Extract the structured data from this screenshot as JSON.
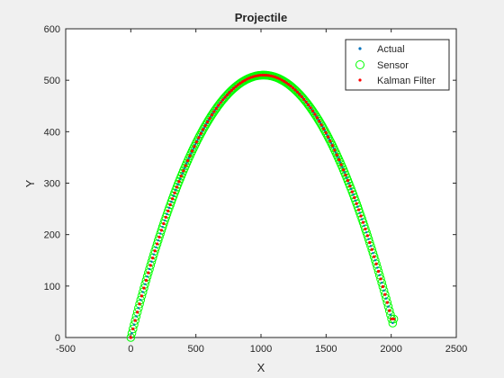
{
  "chart_data": {
    "type": "scatter",
    "title": "Projectile",
    "xlabel": "X",
    "ylabel": "Y",
    "xlim": [
      -500,
      2500
    ],
    "ylim": [
      0,
      600
    ],
    "xticks": [
      -500,
      0,
      500,
      1000,
      1500,
      2000,
      2500
    ],
    "yticks": [
      0,
      100,
      200,
      300,
      400,
      500,
      600
    ],
    "grid": false,
    "legend_position": "top-right",
    "trajectory": {
      "x_start": 0,
      "x_end": 2020,
      "apex_x": 1020,
      "apex_y": 510,
      "final_y": 36
    },
    "series": [
      {
        "name": "Actual",
        "marker": "point",
        "color": "#0072BD"
      },
      {
        "name": "Sensor",
        "marker": "circle",
        "color": "#00FF00"
      },
      {
        "name": "Kalman Filter",
        "marker": "point",
        "color": "#FF0000"
      }
    ]
  }
}
